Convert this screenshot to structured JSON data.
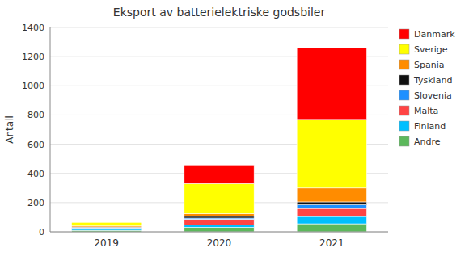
{
  "chart_data": {
    "type": "bar",
    "stacked": true,
    "title": "Eksport av batterielektriske godsbiler",
    "ylabel": "Antall",
    "categories": [
      "2019",
      "2020",
      "2021"
    ],
    "series": [
      {
        "name": "Andre",
        "color": "#5cb85c",
        "values": [
          10,
          30,
          55
        ]
      },
      {
        "name": "Finland",
        "color": "#00bfff",
        "values": [
          8,
          18,
          50
        ]
      },
      {
        "name": "Malta",
        "color": "#ff4444",
        "values": [
          6,
          38,
          55
        ]
      },
      {
        "name": "Slovenia",
        "color": "#1e90ff",
        "values": [
          4,
          8,
          25
        ]
      },
      {
        "name": "Tyskland",
        "color": "#111111",
        "values": [
          5,
          12,
          20
        ]
      },
      {
        "name": "Spania",
        "color": "#ff8c00",
        "values": [
          7,
          18,
          95
        ]
      },
      {
        "name": "Sverige",
        "color": "#ffff00",
        "values": [
          25,
          206,
          470
        ]
      },
      {
        "name": "Danmark",
        "color": "#ff0000",
        "values": [
          0,
          128,
          490
        ]
      }
    ],
    "ylim": [
      0,
      1400
    ],
    "yticks": [
      0,
      200,
      400,
      600,
      800,
      1000,
      1200,
      1400
    ],
    "grid": true,
    "legend": "right"
  }
}
